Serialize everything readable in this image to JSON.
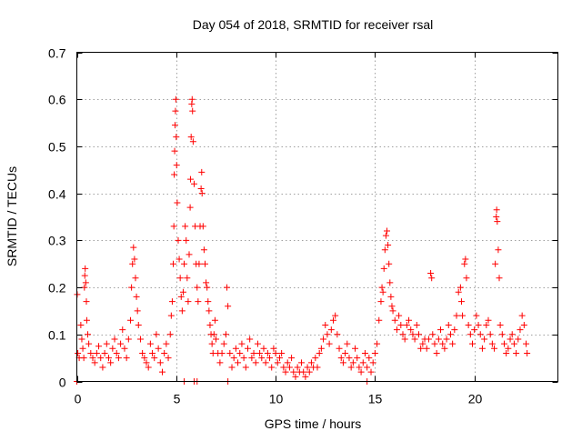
{
  "chart_data": {
    "type": "scatter",
    "title": "Day 054 of 2018, SRMTID for receiver rsal",
    "xlabel": "GPS time / hours",
    "ylabel": "SRMTID / TECUs",
    "xlim": [
      0,
      24.2
    ],
    "ylim": [
      0,
      0.7
    ],
    "grid": true,
    "marker": "+",
    "series_color": "#ff0000",
    "x_ticks": [
      {
        "value": 0,
        "label": "0"
      },
      {
        "value": 5,
        "label": "5"
      },
      {
        "value": 10,
        "label": "10"
      },
      {
        "value": 15,
        "label": "15"
      },
      {
        "value": 20,
        "label": "20"
      }
    ],
    "y_ticks": [
      {
        "value": 0,
        "label": "0"
      },
      {
        "value": 0.1,
        "label": "0.1"
      },
      {
        "value": 0.2,
        "label": "0.2"
      },
      {
        "value": 0.3,
        "label": "0.3"
      },
      {
        "value": 0.4,
        "label": "0.4"
      },
      {
        "value": 0.5,
        "label": "0.5"
      },
      {
        "value": 0.6,
        "label": "0.6"
      },
      {
        "value": 0.7,
        "label": "0.7"
      }
    ],
    "series": [
      {
        "name": "SRMTID",
        "points": [
          [
            0.02,
            0.185
          ],
          [
            0.05,
            0.06
          ],
          [
            0.12,
            0.05
          ],
          [
            0.2,
            0.12
          ],
          [
            0.25,
            0.09
          ],
          [
            0.3,
            0.07
          ],
          [
            0.35,
            0.05
          ],
          [
            0.38,
            0.2
          ],
          [
            0.4,
            0.225
          ],
          [
            0.42,
            0.24
          ],
          [
            0.45,
            0.21
          ],
          [
            0.48,
            0.17
          ],
          [
            0.5,
            0.13
          ],
          [
            0.55,
            0.1
          ],
          [
            0.6,
            0.08
          ],
          [
            0.7,
            0.06
          ],
          [
            0.8,
            0.05
          ],
          [
            0.9,
            0.04
          ],
          [
            1.0,
            0.06
          ],
          [
            1.1,
            0.075
          ],
          [
            1.2,
            0.05
          ],
          [
            1.3,
            0.03
          ],
          [
            1.4,
            0.06
          ],
          [
            1.5,
            0.08
          ],
          [
            1.6,
            0.05
          ],
          [
            1.7,
            0.04
          ],
          [
            1.8,
            0.07
          ],
          [
            1.9,
            0.09
          ],
          [
            2.0,
            0.06
          ],
          [
            2.1,
            0.05
          ],
          [
            2.2,
            0.08
          ],
          [
            2.3,
            0.11
          ],
          [
            2.4,
            0.07
          ],
          [
            2.5,
            0.05
          ],
          [
            2.6,
            0.09
          ],
          [
            2.7,
            0.13
          ],
          [
            2.75,
            0.2
          ],
          [
            2.8,
            0.25
          ],
          [
            2.85,
            0.285
          ],
          [
            2.9,
            0.26
          ],
          [
            2.95,
            0.22
          ],
          [
            3.0,
            0.18
          ],
          [
            3.05,
            0.15
          ],
          [
            3.1,
            0.12
          ],
          [
            3.2,
            0.09
          ],
          [
            3.3,
            0.06
          ],
          [
            3.4,
            0.05
          ],
          [
            3.5,
            0.04
          ],
          [
            3.6,
            0.03
          ],
          [
            3.7,
            0.08
          ],
          [
            3.8,
            0.06
          ],
          [
            3.9,
            0.05
          ],
          [
            4.0,
            0.1
          ],
          [
            4.1,
            0.07
          ],
          [
            4.2,
            0.04
          ],
          [
            4.3,
            0.02
          ],
          [
            4.4,
            0.06
          ],
          [
            4.5,
            0.08
          ],
          [
            4.6,
            0.05
          ],
          [
            4.7,
            0.1
          ],
          [
            4.75,
            0.14
          ],
          [
            4.8,
            0.17
          ],
          [
            4.85,
            0.25
          ],
          [
            4.88,
            0.33
          ],
          [
            4.9,
            0.44
          ],
          [
            4.92,
            0.49
          ],
          [
            4.94,
            0.545
          ],
          [
            4.96,
            0.575
          ],
          [
            4.98,
            0.6
          ],
          [
            5.0,
            0.52
          ],
          [
            5.02,
            0.46
          ],
          [
            5.05,
            0.38
          ],
          [
            5.1,
            0.3
          ],
          [
            5.15,
            0.26
          ],
          [
            5.2,
            0.22
          ],
          [
            5.25,
            0.18
          ],
          [
            5.3,
            0.15
          ],
          [
            5.35,
            0.19
          ],
          [
            5.4,
            0.25
          ],
          [
            5.45,
            0.33
          ],
          [
            5.5,
            0.3
          ],
          [
            5.55,
            0.22
          ],
          [
            5.6,
            0.17
          ],
          [
            5.65,
            0.27
          ],
          [
            5.7,
            0.37
          ],
          [
            5.72,
            0.43
          ],
          [
            5.75,
            0.52
          ],
          [
            5.78,
            0.59
          ],
          [
            5.8,
            0.6
          ],
          [
            5.82,
            0.575
          ],
          [
            5.85,
            0.51
          ],
          [
            5.9,
            0.42
          ],
          [
            5.95,
            0.33
          ],
          [
            6.0,
            0.25
          ],
          [
            6.05,
            0.2
          ],
          [
            6.1,
            0.17
          ],
          [
            6.15,
            0.25
          ],
          [
            6.2,
            0.33
          ],
          [
            6.25,
            0.41
          ],
          [
            6.28,
            0.445
          ],
          [
            6.3,
            0.4
          ],
          [
            6.35,
            0.33
          ],
          [
            6.4,
            0.28
          ],
          [
            6.45,
            0.25
          ],
          [
            6.5,
            0.21
          ],
          [
            6.55,
            0.2
          ],
          [
            6.6,
            0.17
          ],
          [
            6.65,
            0.15
          ],
          [
            6.7,
            0.12
          ],
          [
            6.75,
            0.1
          ],
          [
            6.8,
            0.08
          ],
          [
            6.85,
            0.06
          ],
          [
            6.9,
            0.1
          ],
          [
            6.95,
            0.13
          ],
          [
            7.0,
            0.09
          ],
          [
            7.1,
            0.06
          ],
          [
            7.2,
            0.04
          ],
          [
            7.3,
            0.06
          ],
          [
            7.4,
            0.08
          ],
          [
            7.5,
            0.1
          ],
          [
            7.55,
            0.2
          ],
          [
            7.6,
            0.16
          ],
          [
            7.7,
            0.06
          ],
          [
            7.8,
            0.03
          ],
          [
            7.9,
            0.05
          ],
          [
            8.0,
            0.07
          ],
          [
            8.1,
            0.04
          ],
          [
            8.2,
            0.06
          ],
          [
            8.3,
            0.08
          ],
          [
            8.4,
            0.05
          ],
          [
            8.5,
            0.03
          ],
          [
            8.6,
            0.07
          ],
          [
            8.7,
            0.09
          ],
          [
            8.8,
            0.05
          ],
          [
            8.9,
            0.06
          ],
          [
            9.0,
            0.04
          ],
          [
            9.1,
            0.08
          ],
          [
            9.2,
            0.06
          ],
          [
            9.3,
            0.05
          ],
          [
            9.4,
            0.07
          ],
          [
            9.5,
            0.04
          ],
          [
            9.6,
            0.06
          ],
          [
            9.7,
            0.05
          ],
          [
            9.8,
            0.03
          ],
          [
            9.9,
            0.07
          ],
          [
            10.0,
            0.06
          ],
          [
            10.1,
            0.04
          ],
          [
            10.2,
            0.05
          ],
          [
            10.3,
            0.06
          ],
          [
            10.4,
            0.03
          ],
          [
            10.5,
            0.02
          ],
          [
            10.6,
            0.04
          ],
          [
            10.7,
            0.03
          ],
          [
            10.8,
            0.05
          ],
          [
            10.9,
            0.02
          ],
          [
            11.0,
            0.01
          ],
          [
            11.1,
            0.03
          ],
          [
            11.2,
            0.02
          ],
          [
            11.3,
            0.04
          ],
          [
            11.4,
            0.02
          ],
          [
            11.5,
            0.01
          ],
          [
            11.6,
            0.03
          ],
          [
            11.7,
            0.02
          ],
          [
            11.8,
            0.04
          ],
          [
            11.9,
            0.03
          ],
          [
            12.0,
            0.05
          ],
          [
            12.1,
            0.03
          ],
          [
            12.2,
            0.06
          ],
          [
            12.3,
            0.07
          ],
          [
            12.4,
            0.09
          ],
          [
            12.5,
            0.12
          ],
          [
            12.6,
            0.1
          ],
          [
            12.7,
            0.08
          ],
          [
            12.8,
            0.11
          ],
          [
            12.9,
            0.13
          ],
          [
            13.0,
            0.14
          ],
          [
            13.1,
            0.1
          ],
          [
            13.2,
            0.07
          ],
          [
            13.3,
            0.05
          ],
          [
            13.4,
            0.04
          ],
          [
            13.5,
            0.06
          ],
          [
            13.6,
            0.08
          ],
          [
            13.7,
            0.05
          ],
          [
            13.8,
            0.03
          ],
          [
            13.9,
            0.04
          ],
          [
            14.0,
            0.07
          ],
          [
            14.1,
            0.05
          ],
          [
            14.2,
            0.03
          ],
          [
            14.3,
            0.02
          ],
          [
            14.4,
            0.04
          ],
          [
            14.5,
            0.06
          ],
          [
            14.6,
            0.03
          ],
          [
            14.7,
            0.05
          ],
          [
            14.8,
            0.02
          ],
          [
            14.9,
            0.04
          ],
          [
            15.0,
            0.06
          ],
          [
            15.1,
            0.08
          ],
          [
            15.2,
            0.13
          ],
          [
            15.3,
            0.17
          ],
          [
            15.35,
            0.2
          ],
          [
            15.4,
            0.19
          ],
          [
            15.45,
            0.24
          ],
          [
            15.5,
            0.28
          ],
          [
            15.55,
            0.31
          ],
          [
            15.6,
            0.32
          ],
          [
            15.65,
            0.29
          ],
          [
            15.7,
            0.25
          ],
          [
            15.75,
            0.21
          ],
          [
            15.8,
            0.18
          ],
          [
            15.85,
            0.16
          ],
          [
            15.9,
            0.15
          ],
          [
            16.0,
            0.13
          ],
          [
            16.1,
            0.11
          ],
          [
            16.2,
            0.14
          ],
          [
            16.3,
            0.12
          ],
          [
            16.4,
            0.1
          ],
          [
            16.5,
            0.09
          ],
          [
            16.6,
            0.12
          ],
          [
            16.7,
            0.13
          ],
          [
            16.8,
            0.11
          ],
          [
            16.9,
            0.1
          ],
          [
            17.0,
            0.09
          ],
          [
            17.1,
            0.12
          ],
          [
            17.2,
            0.1
          ],
          [
            17.3,
            0.07
          ],
          [
            17.4,
            0.08
          ],
          [
            17.5,
            0.09
          ],
          [
            17.6,
            0.07
          ],
          [
            17.7,
            0.09
          ],
          [
            17.8,
            0.23
          ],
          [
            17.85,
            0.22
          ],
          [
            17.9,
            0.1
          ],
          [
            18.0,
            0.08
          ],
          [
            18.1,
            0.06
          ],
          [
            18.2,
            0.09
          ],
          [
            18.3,
            0.11
          ],
          [
            18.4,
            0.08
          ],
          [
            18.5,
            0.07
          ],
          [
            18.6,
            0.09
          ],
          [
            18.7,
            0.12
          ],
          [
            18.8,
            0.1
          ],
          [
            18.9,
            0.08
          ],
          [
            19.0,
            0.11
          ],
          [
            19.1,
            0.14
          ],
          [
            19.2,
            0.19
          ],
          [
            19.3,
            0.2
          ],
          [
            19.35,
            0.17
          ],
          [
            19.4,
            0.14
          ],
          [
            19.5,
            0.25
          ],
          [
            19.55,
            0.26
          ],
          [
            19.6,
            0.22
          ],
          [
            19.7,
            0.12
          ],
          [
            19.8,
            0.1
          ],
          [
            19.9,
            0.08
          ],
          [
            20.0,
            0.11
          ],
          [
            20.1,
            0.14
          ],
          [
            20.2,
            0.12
          ],
          [
            20.3,
            0.1
          ],
          [
            20.4,
            0.07
          ],
          [
            20.5,
            0.09
          ],
          [
            20.6,
            0.12
          ],
          [
            20.7,
            0.13
          ],
          [
            20.8,
            0.1
          ],
          [
            20.9,
            0.08
          ],
          [
            21.0,
            0.07
          ],
          [
            21.05,
            0.25
          ],
          [
            21.1,
            0.35
          ],
          [
            21.12,
            0.365
          ],
          [
            21.15,
            0.34
          ],
          [
            21.2,
            0.28
          ],
          [
            21.25,
            0.22
          ],
          [
            21.3,
            0.12
          ],
          [
            21.4,
            0.1
          ],
          [
            21.5,
            0.08
          ],
          [
            21.6,
            0.06
          ],
          [
            21.7,
            0.07
          ],
          [
            21.8,
            0.09
          ],
          [
            21.9,
            0.1
          ],
          [
            22.0,
            0.08
          ],
          [
            22.1,
            0.06
          ],
          [
            22.2,
            0.09
          ],
          [
            22.3,
            0.11
          ],
          [
            22.4,
            0.14
          ],
          [
            22.5,
            0.12
          ],
          [
            22.6,
            0.08
          ],
          [
            22.65,
            0.06
          ],
          [
            0.0,
            0.0
          ],
          [
            5.4,
            0.0
          ],
          [
            5.9,
            0.0
          ],
          [
            6.05,
            0.0
          ],
          [
            7.6,
            0.0
          ],
          [
            14.6,
            0.0
          ]
        ]
      }
    ]
  }
}
